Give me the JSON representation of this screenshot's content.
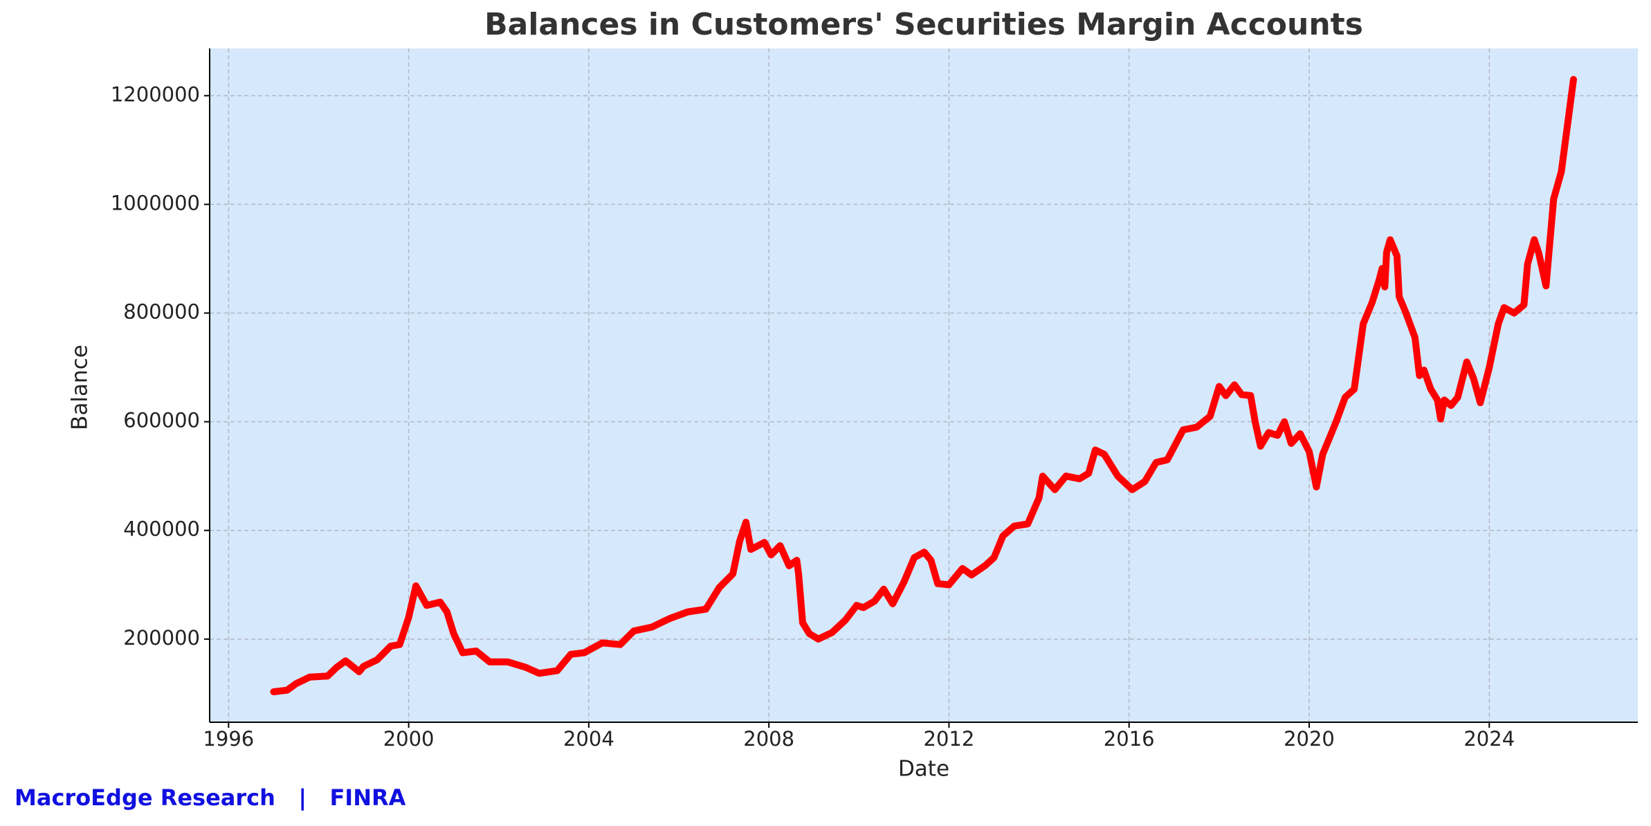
{
  "chart_data": {
    "type": "line",
    "title": "Balances in Customers' Securities Margin Accounts",
    "xlabel": "Date",
    "ylabel": "Balance",
    "source": "MacroEdge Research   |   FINRA",
    "color": "#ff0000",
    "background": "#d6e8fc",
    "grid": true,
    "xlim": [
      1995.58,
      2027.3
    ],
    "ylim": [
      47000,
      1287000
    ],
    "xticks": [
      1996,
      2000,
      2004,
      2008,
      2012,
      2016,
      2020,
      2024
    ],
    "yticks": [
      200000,
      400000,
      600000,
      800000,
      1000000,
      1200000
    ],
    "x": [
      1997.0,
      1997.3,
      1997.5,
      1997.8,
      1998.2,
      1998.4,
      1998.6,
      1998.9,
      1999.0,
      1999.3,
      1999.6,
      1999.8,
      2000.0,
      2000.16,
      2000.4,
      2000.7,
      2000.85,
      2001.0,
      2001.2,
      2001.5,
      2001.8,
      2002.2,
      2002.6,
      2002.9,
      2003.3,
      2003.6,
      2003.9,
      2004.3,
      2004.7,
      2005.0,
      2005.4,
      2005.8,
      2006.2,
      2006.6,
      2006.9,
      2007.2,
      2007.35,
      2007.49,
      2007.6,
      2007.9,
      2008.05,
      2008.25,
      2008.45,
      2008.62,
      2008.66,
      2008.75,
      2008.9,
      2009.1,
      2009.4,
      2009.7,
      2009.95,
      2010.1,
      2010.35,
      2010.55,
      2010.75,
      2011.0,
      2011.23,
      2011.45,
      2011.6,
      2011.75,
      2012.0,
      2012.3,
      2012.5,
      2012.8,
      2013.0,
      2013.2,
      2013.45,
      2013.75,
      2014.0,
      2014.08,
      2014.35,
      2014.6,
      2014.9,
      2015.1,
      2015.25,
      2015.45,
      2015.75,
      2016.07,
      2016.35,
      2016.6,
      2016.85,
      2017.2,
      2017.5,
      2017.8,
      2018.0,
      2018.15,
      2018.34,
      2018.5,
      2018.7,
      2018.8,
      2018.92,
      2019.1,
      2019.3,
      2019.45,
      2019.6,
      2019.8,
      2020.0,
      2020.16,
      2020.3,
      2020.6,
      2020.8,
      2021.0,
      2021.2,
      2021.4,
      2021.55,
      2021.62,
      2021.68,
      2021.72,
      2021.8,
      2021.95,
      2022.0,
      2022.15,
      2022.35,
      2022.45,
      2022.55,
      2022.7,
      2022.85,
      2022.92,
      2023.0,
      2023.15,
      2023.3,
      2023.5,
      2023.65,
      2023.8,
      2024.0,
      2024.2,
      2024.33,
      2024.55,
      2024.77,
      2024.85,
      2025.0,
      2025.1,
      2025.26,
      2025.43,
      2025.6,
      2025.87
    ],
    "values": [
      103000,
      106000,
      118000,
      130000,
      132000,
      148000,
      160000,
      140000,
      150000,
      162000,
      187000,
      190000,
      240000,
      298000,
      262000,
      268000,
      250000,
      210000,
      175000,
      178000,
      158000,
      158000,
      148000,
      137000,
      142000,
      172000,
      175000,
      193000,
      190000,
      215000,
      222000,
      238000,
      250000,
      255000,
      295000,
      320000,
      380000,
      415000,
      365000,
      378000,
      355000,
      372000,
      335000,
      345000,
      320000,
      230000,
      210000,
      200000,
      212000,
      235000,
      262000,
      258000,
      270000,
      292000,
      265000,
      305000,
      350000,
      360000,
      345000,
      302000,
      300000,
      330000,
      318000,
      335000,
      350000,
      390000,
      408000,
      412000,
      460000,
      500000,
      475000,
      500000,
      495000,
      505000,
      548000,
      540000,
      500000,
      475000,
      490000,
      525000,
      530000,
      585000,
      590000,
      610000,
      665000,
      648000,
      668000,
      650000,
      648000,
      600000,
      555000,
      580000,
      575000,
      600000,
      560000,
      578000,
      545000,
      480000,
      540000,
      600000,
      645000,
      660000,
      780000,
      820000,
      860000,
      882000,
      848000,
      912000,
      935000,
      905000,
      830000,
      800000,
      755000,
      685000,
      695000,
      660000,
      640000,
      605000,
      640000,
      630000,
      645000,
      710000,
      680000,
      635000,
      700000,
      780000,
      810000,
      800000,
      815000,
      890000,
      935000,
      910000,
      850000,
      1010000,
      1060000,
      1230000
    ]
  }
}
